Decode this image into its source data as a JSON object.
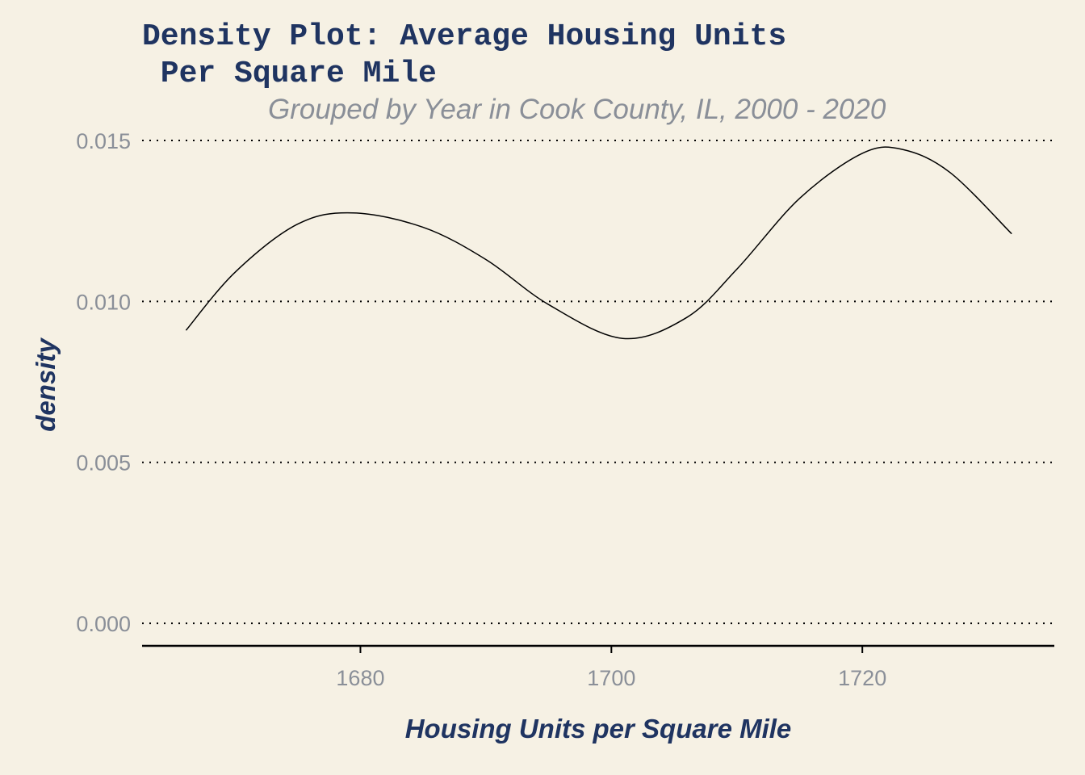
{
  "chart_data": {
    "type": "area",
    "title_lines": [
      "Density Plot: Average Housing Units",
      " Per Square Mile"
    ],
    "subtitle": "Grouped by Year in Cook County, IL, 2000 - 2020",
    "xlabel": "Housing Units per Square Mile",
    "ylabel": "density",
    "xlim": [
      1662.6,
      1735.3
    ],
    "ylim": [
      -0.0007,
      0.0155
    ],
    "x_ticks": [
      1680,
      1700,
      1720
    ],
    "x_tick_labels": [
      "1680",
      "1700",
      "1720"
    ],
    "y_ticks": [
      0,
      0.005,
      0.01,
      0.015
    ],
    "y_tick_labels": [
      "0.000",
      "0.005",
      "0.010",
      "0.015"
    ],
    "grid": "horizontal dotted",
    "legend": "none",
    "series": [
      {
        "x": [
          1666.1,
          1670,
          1675,
          1679.4,
          1685,
          1690,
          1695,
          1700.9,
          1706,
          1710,
          1715,
          1720,
          1723.2,
          1727,
          1731.9
        ],
        "y": [
          0.0091,
          0.0109,
          0.0124,
          0.01275,
          0.0123,
          0.0113,
          0.0099,
          0.00885,
          0.0095,
          0.011,
          0.0132,
          0.0146,
          0.01472,
          0.014,
          0.0121
        ]
      }
    ]
  },
  "colors": {
    "background": "#f6f1e4",
    "title": "#1f3461",
    "subtitle": "#8a8f98",
    "tick_labels": "#8a8f98",
    "curve": "#000000",
    "grid": "#000000",
    "baseline": "#000000"
  }
}
